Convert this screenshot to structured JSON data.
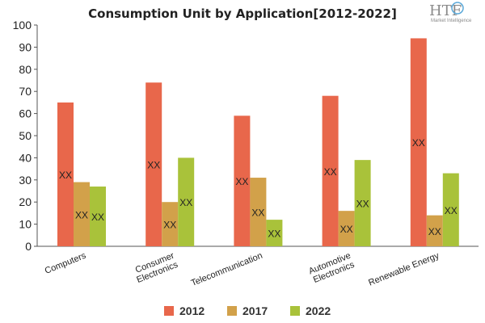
{
  "logo": {
    "mark": "HTF",
    "sub": "Market Intelligence"
  },
  "chart_data": {
    "type": "bar",
    "title": "Consumption Unit by  Application[2012-2022]",
    "xlabel": "",
    "ylabel": "",
    "ylim": [
      0,
      100
    ],
    "yticks": [
      0,
      10,
      20,
      30,
      40,
      50,
      60,
      70,
      80,
      90,
      100
    ],
    "categories": [
      [
        "Computers"
      ],
      [
        "Consumer",
        "Electronics"
      ],
      [
        "Telecommunication"
      ],
      [
        "Automotive",
        "Electronics"
      ],
      [
        "Renewable Energy"
      ]
    ],
    "series": [
      {
        "name": "2012",
        "color": "#e8674b",
        "values": [
          65,
          74,
          59,
          68,
          94
        ]
      },
      {
        "name": "2017",
        "color": "#d2a14a",
        "values": [
          29,
          20,
          31,
          16,
          14
        ]
      },
      {
        "name": "2022",
        "color": "#a9c23a",
        "values": [
          27,
          40,
          12,
          39,
          33
        ]
      }
    ],
    "data_label": "XX",
    "grid": false,
    "legend_position": "bottom"
  }
}
